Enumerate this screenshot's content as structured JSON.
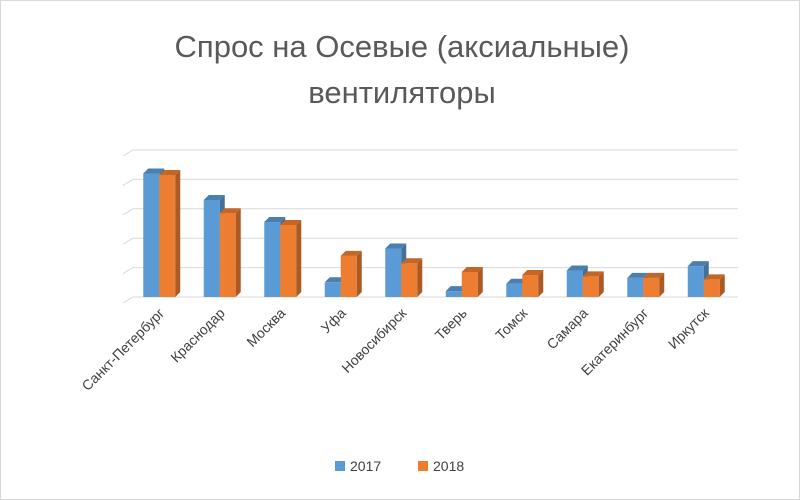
{
  "chart_data": {
    "type": "bar",
    "title_lines": [
      "Спрос на Осевые (аксиальные)",
      "вентиляторы"
    ],
    "categories": [
      "Санкт-Петербург",
      "Краснодар",
      "Москва",
      "Уфа",
      "Новосибирск",
      "Тверь",
      "Томск",
      "Самара",
      "Екатеринбург",
      "Иркутск"
    ],
    "series": [
      {
        "name": "2017",
        "color": "#5b9bd5",
        "values": [
          4.2,
          3.3,
          2.55,
          0.5,
          1.65,
          0.2,
          0.45,
          0.9,
          0.65,
          1.05
        ]
      },
      {
        "name": "2018",
        "color": "#ed7d31",
        "values": [
          4.15,
          2.85,
          2.45,
          1.4,
          1.15,
          0.85,
          0.75,
          0.7,
          0.65,
          0.6
        ]
      }
    ],
    "ylim": [
      0,
      5
    ],
    "grid": true,
    "y_tick_labels_shown": false,
    "legend_position": "bottom",
    "style": "3d-clustered-column"
  }
}
